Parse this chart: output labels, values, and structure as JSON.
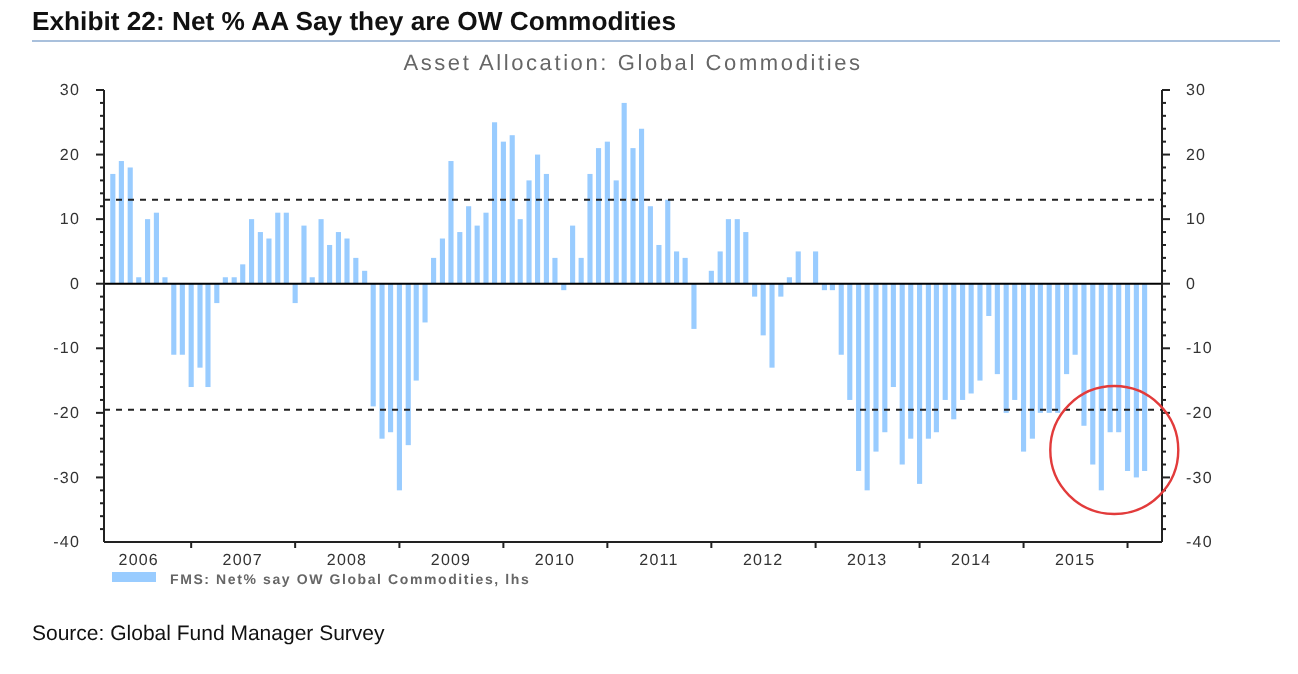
{
  "chart_data": {
    "type": "bar",
    "title": "Exhibit 22: Net % AA Say they are OW Commodities",
    "subtitle": "Asset Allocation: Global Commodities",
    "x": [
      "2006-04",
      "2006-05",
      "2006-06",
      "2006-07",
      "2006-08",
      "2006-09",
      "2006-10",
      "2006-11",
      "2006-12",
      "2007-01",
      "2007-02",
      "2007-03",
      "2007-04",
      "2007-05",
      "2007-06",
      "2007-07",
      "2007-08",
      "2007-09",
      "2007-10",
      "2007-11",
      "2007-12",
      "2008-01",
      "2008-02",
      "2008-03",
      "2008-04",
      "2008-05",
      "2008-06",
      "2008-07",
      "2008-08",
      "2008-09",
      "2008-10",
      "2008-11",
      "2008-12",
      "2009-01",
      "2009-02",
      "2009-03",
      "2009-04",
      "2009-05",
      "2009-06",
      "2009-07",
      "2009-08",
      "2009-09",
      "2009-10",
      "2009-11",
      "2009-12",
      "2010-01",
      "2010-02",
      "2010-03",
      "2010-04",
      "2010-05",
      "2010-06",
      "2010-07",
      "2010-08",
      "2010-09",
      "2010-10",
      "2010-11",
      "2010-12",
      "2011-01",
      "2011-02",
      "2011-03",
      "2011-04",
      "2011-05",
      "2011-06",
      "2011-07",
      "2011-08",
      "2011-09",
      "2011-10",
      "2011-11",
      "2011-12",
      "2012-01",
      "2012-02",
      "2012-03",
      "2012-04",
      "2012-05",
      "2012-06",
      "2012-07",
      "2012-08",
      "2012-09",
      "2012-10",
      "2012-11",
      "2012-12",
      "2013-01",
      "2013-02",
      "2013-03",
      "2013-04",
      "2013-05",
      "2013-06",
      "2013-07",
      "2013-08",
      "2013-09",
      "2013-10",
      "2013-11",
      "2013-12",
      "2014-01",
      "2014-02",
      "2014-03",
      "2014-04",
      "2014-05",
      "2014-06",
      "2014-07",
      "2014-08",
      "2014-09",
      "2014-10",
      "2014-11",
      "2014-12",
      "2015-01",
      "2015-02",
      "2015-03",
      "2015-04",
      "2015-05",
      "2015-06",
      "2015-07",
      "2015-08",
      "2015-09",
      "2015-10",
      "2015-11",
      "2015-12",
      "2016-01",
      "2016-02",
      "2016-03"
    ],
    "series": [
      {
        "name": "FMS: Net% say OW Global Commodities, lhs",
        "color": "#99ccff",
        "values": [
          17,
          19,
          18,
          1,
          10,
          11,
          1,
          -11,
          -11,
          -16,
          -13,
          -16,
          -3,
          1,
          1,
          3,
          10,
          8,
          7,
          11,
          11,
          -3,
          9,
          1,
          10,
          6,
          8,
          7,
          4,
          2,
          -19,
          -24,
          -23,
          -32,
          -25,
          -15,
          -6,
          4,
          7,
          19,
          8,
          12,
          9,
          11,
          25,
          22,
          23,
          10,
          16,
          20,
          17,
          4,
          -1,
          9,
          4,
          17,
          21,
          22,
          16,
          28,
          21,
          24,
          12,
          6,
          13,
          5,
          4,
          -7,
          0,
          2,
          5,
          10,
          10,
          8,
          -2,
          -8,
          -13,
          -2,
          1,
          5,
          0,
          5,
          -1,
          -1,
          -11,
          -18,
          -29,
          -32,
          -26,
          -23,
          -16,
          -28,
          -24,
          -31,
          -24,
          -23,
          -18,
          -21,
          -18,
          -17,
          -15,
          -5,
          -14,
          -20,
          -18,
          -26,
          -24,
          -20,
          -20,
          -20,
          -14,
          -11,
          -22,
          -28,
          -32,
          -23,
          -23,
          -29,
          -30,
          -29
        ]
      }
    ],
    "xlim": [
      "2006-03",
      "2016-05"
    ],
    "xticks": [
      {
        "value": "2006-07",
        "label": "2006"
      },
      {
        "value": "2007-01",
        "label": null
      },
      {
        "value": "2007-07",
        "label": "2007"
      },
      {
        "value": "2008-01",
        "label": null
      },
      {
        "value": "2008-07",
        "label": "2008"
      },
      {
        "value": "2009-01",
        "label": null
      },
      {
        "value": "2009-07",
        "label": "2009"
      },
      {
        "value": "2010-01",
        "label": null
      },
      {
        "value": "2010-07",
        "label": "2010"
      },
      {
        "value": "2011-01",
        "label": null
      },
      {
        "value": "2011-07",
        "label": "2011"
      },
      {
        "value": "2012-01",
        "label": null
      },
      {
        "value": "2012-07",
        "label": "2012"
      },
      {
        "value": "2013-01",
        "label": null
      },
      {
        "value": "2013-07",
        "label": "2013"
      },
      {
        "value": "2014-01",
        "label": null
      },
      {
        "value": "2014-07",
        "label": "2014"
      },
      {
        "value": "2015-01",
        "label": null
      },
      {
        "value": "2015-07",
        "label": "2015"
      },
      {
        "value": "2016-01",
        "label": null
      }
    ],
    "ylim": [
      -40,
      30
    ],
    "yticks": [
      -40,
      {
        "value": -38,
        "label": null
      },
      {
        "value": -36,
        "label": null
      },
      {
        "value": -34,
        "label": null
      },
      {
        "value": -32,
        "label": null
      },
      -30,
      {
        "value": -28,
        "label": null
      },
      {
        "value": -26,
        "label": null
      },
      {
        "value": -24,
        "label": null
      },
      {
        "value": -22,
        "label": null
      },
      -20,
      {
        "value": -18,
        "label": null
      },
      {
        "value": -16,
        "label": null
      },
      {
        "value": -14,
        "label": null
      },
      {
        "value": -12,
        "label": null
      },
      -10,
      {
        "value": -8,
        "label": null
      },
      {
        "value": -6,
        "label": null
      },
      {
        "value": -4,
        "label": null
      },
      {
        "value": -2,
        "label": null
      },
      0,
      {
        "value": 2,
        "label": null
      },
      {
        "value": 4,
        "label": null
      },
      {
        "value": 6,
        "label": null
      },
      {
        "value": 8,
        "label": null
      },
      10,
      {
        "value": 12,
        "label": null
      },
      {
        "value": 14,
        "label": null
      },
      {
        "value": 16,
        "label": null
      },
      {
        "value": 18,
        "label": null
      },
      20,
      {
        "value": 22,
        "label": null
      },
      {
        "value": 24,
        "label": null
      },
      {
        "value": 26,
        "label": null
      },
      {
        "value": 28,
        "label": null
      },
      30
    ],
    "y2lim": [
      -40,
      30
    ],
    "y2ticks": [
      -40,
      {
        "value": -38,
        "label": null
      },
      {
        "value": -36,
        "label": null
      },
      {
        "value": -34,
        "label": null
      },
      {
        "value": -32,
        "label": null
      },
      -30,
      {
        "value": -28,
        "label": null
      },
      {
        "value": -26,
        "label": null
      },
      {
        "value": -24,
        "label": null
      },
      {
        "value": -22,
        "label": null
      },
      -20,
      {
        "value": -18,
        "label": null
      },
      {
        "value": -16,
        "label": null
      },
      {
        "value": -14,
        "label": null
      },
      {
        "value": -12,
        "label": null
      },
      -10,
      {
        "value": -8,
        "label": null
      },
      {
        "value": -6,
        "label": null
      },
      {
        "value": -4,
        "label": null
      },
      {
        "value": -2,
        "label": null
      },
      0,
      {
        "value": 2,
        "label": null
      },
      {
        "value": 4,
        "label": null
      },
      {
        "value": 6,
        "label": null
      },
      {
        "value": 8,
        "label": null
      },
      10,
      {
        "value": 12,
        "label": null
      },
      {
        "value": 14,
        "label": null
      },
      {
        "value": 16,
        "label": null
      },
      {
        "value": 18,
        "label": null
      },
      20,
      {
        "value": 22,
        "label": null
      },
      {
        "value": 24,
        "label": null
      },
      {
        "value": 26,
        "label": null
      },
      {
        "value": 28,
        "label": null
      },
      30
    ],
    "ref_lines": [
      {
        "axis": "y",
        "value": 13,
        "line_style": "dashed",
        "color": "#222222"
      },
      {
        "axis": "y",
        "value": -19.5,
        "line_style": "dashed",
        "color": "#222222"
      },
      {
        "axis": "y",
        "value": 0,
        "line_style": "solid",
        "color": "#000000"
      }
    ],
    "grid": false,
    "legend": "bottom left",
    "annotations": [
      "Source: Global Fund Manager Survey"
    ]
  }
}
